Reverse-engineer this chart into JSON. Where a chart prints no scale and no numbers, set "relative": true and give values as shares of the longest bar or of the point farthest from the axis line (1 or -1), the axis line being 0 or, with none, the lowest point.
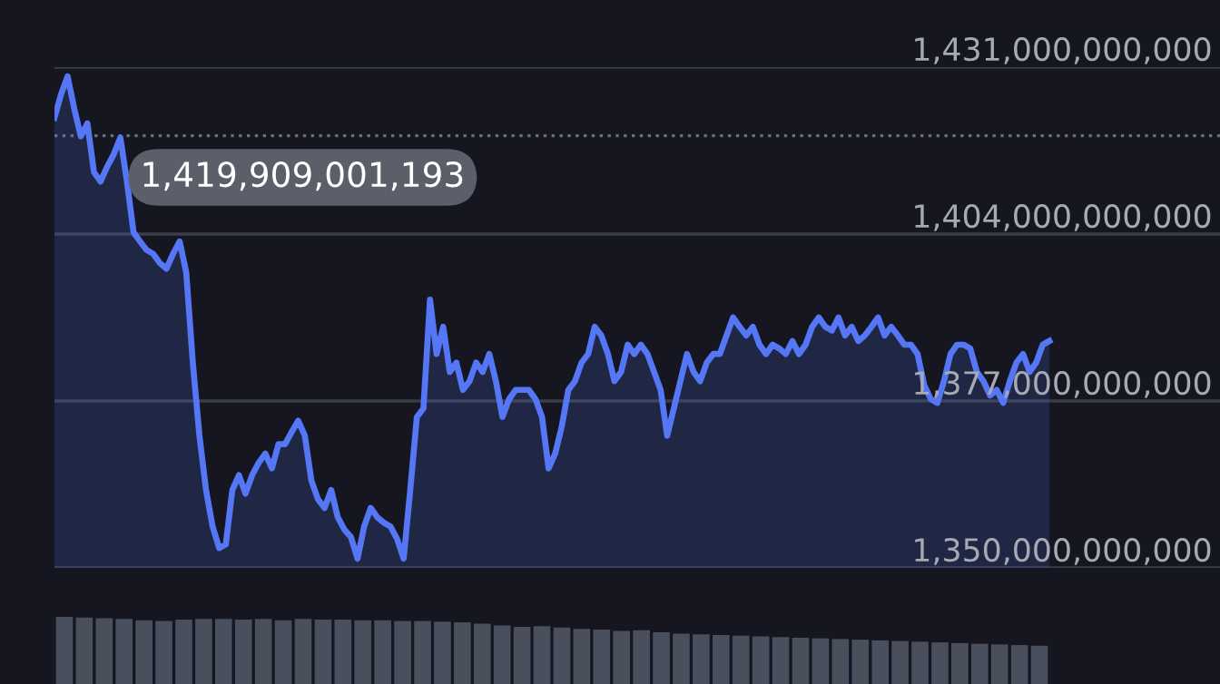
{
  "chart_data": [
    {
      "type": "area",
      "categories": [
        null,
        null,
        null,
        null,
        null,
        null,
        null,
        null,
        null,
        null,
        null,
        null,
        null,
        null,
        null,
        null,
        null,
        null,
        null,
        null,
        null,
        null,
        null,
        null,
        null,
        null,
        null,
        null,
        null,
        null,
        null,
        null,
        null,
        null,
        null,
        null,
        null,
        null,
        null,
        null,
        null,
        null,
        null,
        null,
        null,
        null,
        null,
        null,
        null,
        null,
        null,
        null,
        null,
        null,
        null,
        null,
        null,
        null,
        null,
        null,
        null,
        null,
        null,
        null,
        null,
        null,
        null,
        null,
        null,
        null,
        null,
        null,
        null,
        null,
        null,
        null,
        null,
        null,
        null,
        null,
        null,
        null,
        null,
        null,
        null,
        null,
        null,
        null,
        null,
        null,
        null,
        null,
        null,
        null,
        null,
        null,
        null,
        null,
        null,
        null,
        null,
        null,
        null,
        null,
        null,
        null,
        null,
        null,
        null,
        null,
        null,
        null,
        null,
        null,
        null,
        null,
        null,
        null,
        null,
        null,
        null,
        null,
        null,
        null,
        null,
        null,
        null,
        null,
        null,
        null,
        null,
        null,
        null,
        null,
        null,
        null,
        null,
        null,
        null,
        null,
        null,
        null,
        null,
        null,
        null,
        null,
        null,
        null,
        null,
        null,
        null,
        null
      ],
      "series": [
        {
          "color": "#5577f5",
          "values": [
            1422800000000.0,
            1426600000000.0,
            1429500000000.0,
            1424300000000.0,
            1419800000000.0,
            1421900000000.0,
            1414000000000.0,
            1412500000000.0,
            1414900000000.0,
            1416900000000.0,
            1419600000000.0,
            1412500000000.0,
            1404300000000.0,
            1402800000000.0,
            1401400000000.0,
            1400800000000.0,
            1399300000000.0,
            1398400000000.0,
            1400800000000.0,
            1402800000000.0,
            1397800000000.0,
            1383200000000.0,
            1371400000000.0,
            1362600000000.0,
            1356700000000.0,
            1353200000000.0,
            1353800000000.0,
            1362600000000.0,
            1365000000000.0,
            1362000000000.0,
            1365000000000.0,
            1367000000000.0,
            1368500000000.0,
            1366100000000.0,
            1370000000000.0,
            1370000000000.0,
            1372000000000.0,
            1373800000000.0,
            1371400000000.0,
            1364100000000.0,
            1361100000000.0,
            1359700000000.0,
            1362600000000.0,
            1358200000000.0,
            1356200000000.0,
            1355000000000.0,
            1351500000000.0,
            1356700000000.0,
            1359700000000.0,
            1358200000000.0,
            1357300000000.0,
            1356700000000.0,
            1354700000000.0,
            1351500000000.0,
            1362600000000.0,
            1374400000000.0,
            1375800000000.0,
            1393400000000.0,
            1384600000000.0,
            1389000000000.0,
            1381700000000.0,
            1383200000000.0,
            1378800000000.0,
            1380200000000.0,
            1383200000000.0,
            1381700000000.0,
            1384600000000.0,
            1380200000000.0,
            1374400000000.0,
            1377300000000.0,
            1378800000000.0,
            1378800000000.0,
            1378800000000.0,
            1377300000000.0,
            1374400000000.0,
            1366100000000.0,
            1368500000000.0,
            1372900000000.0,
            1378800000000.0,
            1380200000000.0,
            1383200000000.0,
            1384600000000.0,
            1389000000000.0,
            1387600000000.0,
            1384600000000.0,
            1380200000000.0,
            1381700000000.0,
            1386100000000.0,
            1384600000000.0,
            1386100000000.0,
            1384600000000.0,
            1381700000000.0,
            1378800000000.0,
            1371400000000.0,
            1375800000000.0,
            1380200000000.0,
            1384600000000.0,
            1381700000000.0,
            1380200000000.0,
            1383200000000.0,
            1384600000000.0,
            1384600000000.0,
            1387600000000.0,
            1390500000000.0,
            1389000000000.0,
            1387600000000.0,
            1389000000000.0,
            1386100000000.0,
            1384600000000.0,
            1386100000000.0,
            1385500000000.0,
            1384600000000.0,
            1386700000000.0,
            1384600000000.0,
            1386100000000.0,
            1389000000000.0,
            1390500000000.0,
            1389000000000.0,
            1388400000000.0,
            1390500000000.0,
            1387600000000.0,
            1389000000000.0,
            1386700000000.0,
            1387600000000.0,
            1389000000000.0,
            1390500000000.0,
            1387600000000.0,
            1389000000000.0,
            1387600000000.0,
            1386100000000.0,
            1386100000000.0,
            1384600000000.0,
            1379600000000.0,
            1377300000000.0,
            1376700000000.0,
            1380200000000.0,
            1384600000000.0,
            1386100000000.0,
            1386100000000.0,
            1385500000000.0,
            1381700000000.0,
            1380200000000.0,
            1377900000000.0,
            1378800000000.0,
            1376700000000.0,
            1380200000000.0,
            1383200000000.0,
            1384600000000.0,
            1381700000000.0,
            1383200000000.0,
            1386100000000.0,
            1386700000000.0
          ]
        }
      ],
      "ylim": [
        1350000000000.0,
        1431000000000.0
      ],
      "yticks": [
        {
          "value": 1350000000000.0,
          "label": "1,350,000,000,000"
        },
        {
          "value": 1377000000000.0,
          "label": "1,377,000,000,000"
        },
        {
          "value": 1404000000000.0,
          "label": "1,404,000,000,000"
        },
        {
          "value": 1431000000000.0,
          "label": "1,431,000,000,000"
        }
      ],
      "ref_lines": [
        {
          "axis": "y",
          "value": 1419909001193,
          "label": "1,419,909,001,193",
          "color": "#6b6e78",
          "line_style": "dotted"
        }
      ],
      "grid": "y",
      "tick_labels": "y"
    },
    {
      "type": "bar",
      "relative": true,
      "tick_labels": false,
      "categories": [
        null,
        null,
        null,
        null,
        null,
        null,
        null,
        null,
        null,
        null,
        null,
        null,
        null,
        null,
        null,
        null,
        null,
        null,
        null,
        null,
        null,
        null,
        null,
        null,
        null,
        null,
        null,
        null,
        null,
        null,
        null,
        null,
        null,
        null,
        null,
        null,
        null,
        null,
        null,
        null,
        null,
        null,
        null,
        null,
        null,
        null,
        null,
        null,
        null,
        null
      ],
      "color": "#4a4f5e",
      "values": [
        1.0,
        0.99,
        0.98,
        0.97,
        0.95,
        0.94,
        0.96,
        0.97,
        0.97,
        0.96,
        0.97,
        0.95,
        0.97,
        0.96,
        0.96,
        0.95,
        0.95,
        0.94,
        0.94,
        0.93,
        0.92,
        0.9,
        0.87,
        0.85,
        0.86,
        0.84,
        0.82,
        0.81,
        0.79,
        0.8,
        0.77,
        0.75,
        0.74,
        0.73,
        0.72,
        0.71,
        0.7,
        0.69,
        0.68,
        0.67,
        0.66,
        0.65,
        0.64,
        0.63,
        0.62,
        0.61,
        0.6,
        0.59,
        0.58,
        0.57
      ]
    }
  ]
}
